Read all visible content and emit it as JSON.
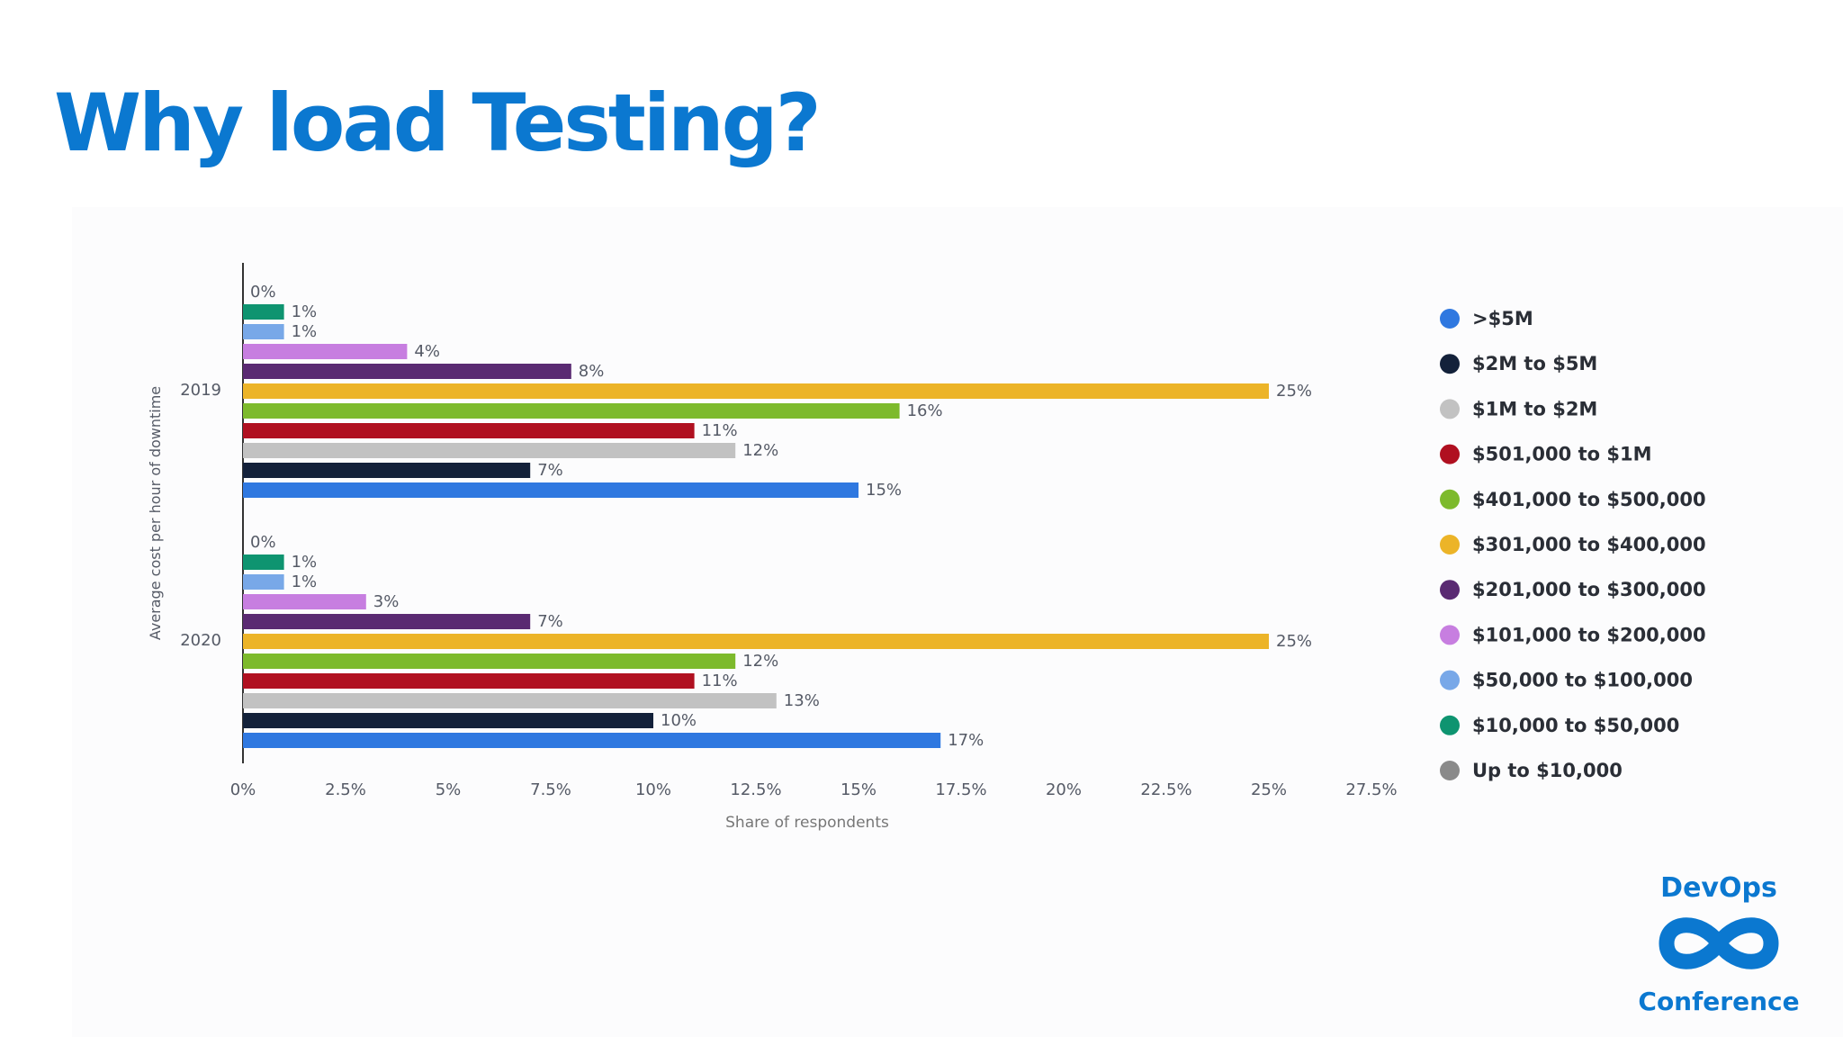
{
  "slide": {
    "title": "Why load Testing?"
  },
  "logo": {
    "line1": "DevOps",
    "line2": "Conference",
    "icon": "infinity-icon"
  },
  "chart_data": {
    "type": "bar",
    "orientation": "horizontal",
    "categories": [
      "2019",
      "2020"
    ],
    "xlabel": "Share of respondents",
    "ylabel": "Average cost per hour of downtime",
    "xlim": [
      0,
      27.5
    ],
    "xticks": [
      "0%",
      "2.5%",
      "5%",
      "7.5%",
      "10%",
      "12.5%",
      "15%",
      "17.5%",
      "20%",
      "22.5%",
      "25%",
      "27.5%"
    ],
    "grid": false,
    "legend_position": "right",
    "series": [
      {
        "name": "Up to $10,000",
        "color": "#8a8a8a",
        "values": [
          0,
          0
        ],
        "labels": [
          "0%",
          "0%"
        ]
      },
      {
        "name": "$10,000 to $50,000",
        "color": "#0e9470",
        "values": [
          1,
          1
        ],
        "labels": [
          "1%",
          "1%"
        ]
      },
      {
        "name": "$50,000 to $100,000",
        "color": "#78a8e8",
        "values": [
          1,
          1
        ],
        "labels": [
          "1%",
          "1%"
        ]
      },
      {
        "name": "$101,000 to $200,000",
        "color": "#c77ee0",
        "values": [
          4,
          3
        ],
        "labels": [
          "4%",
          "3%"
        ]
      },
      {
        "name": "$201,000 to $300,000",
        "color": "#5a2a72",
        "values": [
          8,
          7
        ],
        "labels": [
          "8%",
          "7%"
        ]
      },
      {
        "name": "$301,000 to $400,000",
        "color": "#ecb428",
        "values": [
          25,
          25
        ],
        "labels": [
          "25%",
          "25%"
        ]
      },
      {
        "name": "$401,000 to $500,000",
        "color": "#7dba2c",
        "values": [
          16,
          12
        ],
        "labels": [
          "16%",
          "12%"
        ]
      },
      {
        "name": "$501,000 to $1M",
        "color": "#b01020",
        "values": [
          11,
          11
        ],
        "labels": [
          "11%",
          "11%"
        ]
      },
      {
        "name": "$1M to $2M",
        "color": "#c2c2c2",
        "values": [
          12,
          13
        ],
        "labels": [
          "12%",
          "13%"
        ]
      },
      {
        "name": "$2M to $5M",
        "color": "#13213a",
        "values": [
          7,
          10
        ],
        "labels": [
          "7%",
          "10%"
        ]
      },
      {
        "name": ">$5M",
        "color": "#2f78e0",
        "values": [
          15,
          17
        ],
        "labels": [
          "15%",
          "17%"
        ]
      }
    ],
    "legend_order": [
      ">$5M",
      "$2M to $5M",
      "$1M to $2M",
      "$501,000 to $1M",
      "$401,000 to $500,000",
      "$301,000 to $400,000",
      "$201,000 to $300,000",
      "$101,000 to $200,000",
      "$50,000 to $100,000",
      "$10,000 to $50,000",
      "Up to $10,000"
    ]
  }
}
